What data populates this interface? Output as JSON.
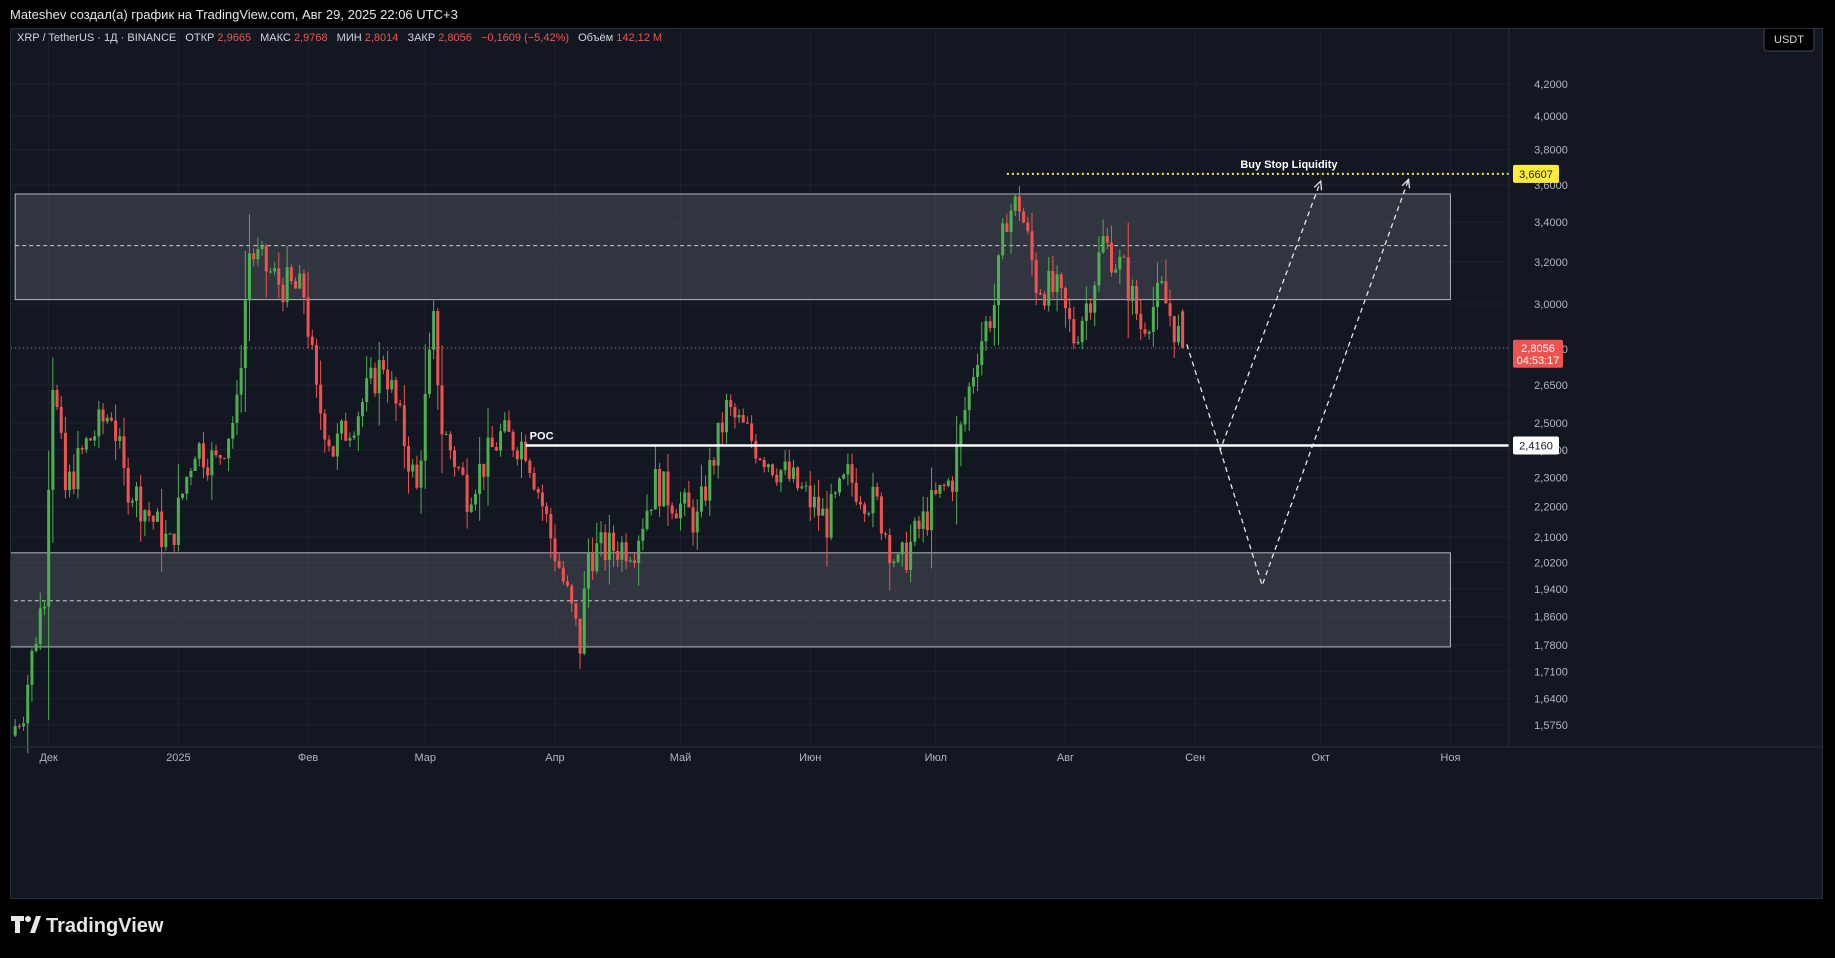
{
  "header": {
    "attribution": "Mateshev создал(а) график на TradingView.com, Авг 29, 2025 22:06 UTC+3"
  },
  "legend": {
    "symbol": "XRP / TetherUS · 1Д · BINANCE",
    "open_label": "ОТКР",
    "open_value": "2,9665",
    "high_label": "МАКС",
    "high_value": "2,9768",
    "low_label": "МИН",
    "low_value": "2,8014",
    "close_label": "ЗАКР",
    "close_value": "2,8056",
    "change_value": "−0,1609 (−5,42%)",
    "volume_label": "Объём",
    "volume_value": "142,12 M"
  },
  "currency_button": "USDT",
  "brand": "TradingView",
  "colors": {
    "up": "#26a69a",
    "up_candle": "#4caf50",
    "down": "#ef5350",
    "background": "#131722",
    "zone": "#787b86",
    "poc": "#ffffff",
    "liquidity": "#ffeb3b"
  },
  "chart_data": {
    "type": "candlestick",
    "symbol": "XRP/USDT",
    "interval": "1D",
    "x_range": [
      "2024-11-22",
      "2025-11-15"
    ],
    "y_range": [
      1.53,
      4.5
    ],
    "y_ticks": [
      1.575,
      1.64,
      1.71,
      1.78,
      1.86,
      1.94,
      2.02,
      2.1,
      2.2,
      2.3,
      2.4,
      2.5,
      2.65,
      2.8,
      3.0,
      3.2,
      3.4,
      3.6,
      3.8,
      4.0,
      4.2
    ],
    "y_tick_labels": [
      "1,5750",
      "1,6400",
      "1,7100",
      "1,7800",
      "1,8600",
      "1,9400",
      "2,0200",
      "2,1000",
      "2,2000",
      "2,3000",
      "2,4000",
      "2,5000",
      "2,6500",
      "2,8000",
      "3,0000",
      "3,2000",
      "3,4000",
      "3,6000",
      "3,8000",
      "4,0000",
      "4,2000"
    ],
    "x_ticks": [
      {
        "label": "Дек",
        "date": "2024-12-01"
      },
      {
        "label": "2025",
        "date": "2025-01-01"
      },
      {
        "label": "Фев",
        "date": "2025-02-01"
      },
      {
        "label": "Мар",
        "date": "2025-03-01"
      },
      {
        "label": "Апр",
        "date": "2025-04-01"
      },
      {
        "label": "Май",
        "date": "2025-05-01"
      },
      {
        "label": "Июн",
        "date": "2025-06-01"
      },
      {
        "label": "Июл",
        "date": "2025-07-01"
      },
      {
        "label": "Авг",
        "date": "2025-08-01"
      },
      {
        "label": "Сен",
        "date": "2025-09-01"
      },
      {
        "label": "Окт",
        "date": "2025-10-01"
      },
      {
        "label": "Ноя",
        "date": "2025-11-01"
      }
    ],
    "anchors": [
      {
        "date": "2024-11-22",
        "close": 1.55
      },
      {
        "date": "2024-11-25",
        "close": 1.62
      },
      {
        "date": "2024-11-30",
        "close": 1.94
      },
      {
        "date": "2024-12-02",
        "close": 2.68
      },
      {
        "date": "2024-12-05",
        "close": 2.25
      },
      {
        "date": "2024-12-10",
        "close": 2.42
      },
      {
        "date": "2024-12-16",
        "close": 2.55
      },
      {
        "date": "2024-12-19",
        "close": 2.3
      },
      {
        "date": "2024-12-30",
        "close": 2.07
      },
      {
        "date": "2025-01-05",
        "close": 2.42
      },
      {
        "date": "2025-01-10",
        "close": 2.35
      },
      {
        "date": "2025-01-15",
        "close": 2.55
      },
      {
        "date": "2025-01-18",
        "close": 3.25
      },
      {
        "date": "2025-01-25",
        "close": 3.1
      },
      {
        "date": "2025-01-31",
        "close": 3.05
      },
      {
        "date": "2025-02-03",
        "close": 2.6
      },
      {
        "date": "2025-02-07",
        "close": 2.4
      },
      {
        "date": "2025-02-13",
        "close": 2.55
      },
      {
        "date": "2025-02-19",
        "close": 2.75
      },
      {
        "date": "2025-02-27",
        "close": 2.25
      },
      {
        "date": "2025-03-03",
        "close": 2.9
      },
      {
        "date": "2025-03-05",
        "close": 2.48
      },
      {
        "date": "2025-03-11",
        "close": 2.25
      },
      {
        "date": "2025-03-19",
        "close": 2.45
      },
      {
        "date": "2025-03-25",
        "close": 2.42
      },
      {
        "date": "2025-03-31",
        "close": 2.1
      },
      {
        "date": "2025-04-07",
        "close": 1.78
      },
      {
        "date": "2025-04-09",
        "close": 2.05
      },
      {
        "date": "2025-04-20",
        "close": 2.08
      },
      {
        "date": "2025-04-25",
        "close": 2.28
      },
      {
        "date": "2025-05-05",
        "close": 2.15
      },
      {
        "date": "2025-05-12",
        "close": 2.55
      },
      {
        "date": "2025-05-20",
        "close": 2.4
      },
      {
        "date": "2025-05-30",
        "close": 2.25
      },
      {
        "date": "2025-06-05",
        "close": 2.15
      },
      {
        "date": "2025-06-10",
        "close": 2.3
      },
      {
        "date": "2025-06-17",
        "close": 2.2
      },
      {
        "date": "2025-06-22",
        "close": 2.0
      },
      {
        "date": "2025-06-30",
        "close": 2.2
      },
      {
        "date": "2025-07-05",
        "close": 2.3
      },
      {
        "date": "2025-07-11",
        "close": 2.8
      },
      {
        "date": "2025-07-15",
        "close": 3.0
      },
      {
        "date": "2025-07-18",
        "close": 3.45
      },
      {
        "date": "2025-07-21",
        "close": 3.5
      },
      {
        "date": "2025-07-25",
        "close": 3.1
      },
      {
        "date": "2025-07-30",
        "close": 3.05
      },
      {
        "date": "2025-08-03",
        "close": 2.85
      },
      {
        "date": "2025-08-07",
        "close": 3.05
      },
      {
        "date": "2025-08-10",
        "close": 3.3
      },
      {
        "date": "2025-08-15",
        "close": 3.15
      },
      {
        "date": "2025-08-19",
        "close": 2.9
      },
      {
        "date": "2025-08-24",
        "close": 3.05
      },
      {
        "date": "2025-08-29",
        "close": 2.8056
      }
    ],
    "last_candle": {
      "date": "2025-08-29",
      "open": 2.9665,
      "high": 2.9768,
      "low": 2.8014,
      "close": 2.8056
    },
    "zones": [
      {
        "from": "2024-11-23",
        "to": "2025-11-01",
        "low": 3.02,
        "high": 3.55,
        "mid": 3.28
      },
      {
        "from": "2024-11-21",
        "to": "2025-11-01",
        "low": 1.775,
        "high": 2.05,
        "mid": 1.905
      }
    ],
    "poc": {
      "label": "POC",
      "value": 2.416,
      "value_label": "2,4160",
      "from": "2025-03-25"
    },
    "liquidity": {
      "label": "Buy Stop Liquidity",
      "value": 3.6607,
      "value_label": "3,6607",
      "from": "2025-07-18"
    },
    "last_price_label": "2,8056",
    "countdown": "04:53:17",
    "projections": [
      [
        {
          "date": "2025-08-30",
          "value": 2.82
        },
        {
          "date": "2025-09-07",
          "value": 2.4
        },
        {
          "date": "2025-10-01",
          "value": 3.62
        }
      ],
      [
        {
          "date": "2025-09-07",
          "value": 2.4
        },
        {
          "date": "2025-09-17",
          "value": 1.95
        },
        {
          "date": "2025-10-22",
          "value": 3.63
        }
      ]
    ]
  }
}
